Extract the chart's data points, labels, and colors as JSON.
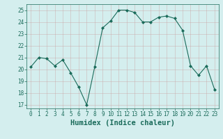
{
  "x": [
    0,
    1,
    2,
    3,
    4,
    5,
    6,
    7,
    8,
    9,
    10,
    11,
    12,
    13,
    14,
    15,
    16,
    17,
    18,
    19,
    20,
    21,
    22,
    23
  ],
  "y": [
    20.2,
    21.0,
    20.9,
    20.3,
    20.8,
    19.7,
    18.5,
    17.0,
    20.2,
    23.5,
    24.1,
    25.0,
    25.0,
    24.8,
    24.0,
    24.0,
    24.4,
    24.5,
    24.3,
    23.3,
    20.3,
    19.5,
    20.3,
    18.3
  ],
  "line_color": "#1a6b5a",
  "marker": "D",
  "marker_size": 2.0,
  "bg_color": "#d4eeee",
  "grid_color": "#b0d8d8",
  "xlabel": "Humidex (Indice chaleur)",
  "ylim": [
    16.7,
    25.5
  ],
  "xlim": [
    -0.5,
    23.5
  ],
  "yticks": [
    17,
    18,
    19,
    20,
    21,
    22,
    23,
    24,
    25
  ],
  "xticks": [
    0,
    1,
    2,
    3,
    4,
    5,
    6,
    7,
    8,
    9,
    10,
    11,
    12,
    13,
    14,
    15,
    16,
    17,
    18,
    19,
    20,
    21,
    22,
    23
  ],
  "tick_fontsize": 5.5,
  "xlabel_fontsize": 7.5,
  "line_color_dark": "#1a6b5a",
  "label_color": "#1a6b5a"
}
